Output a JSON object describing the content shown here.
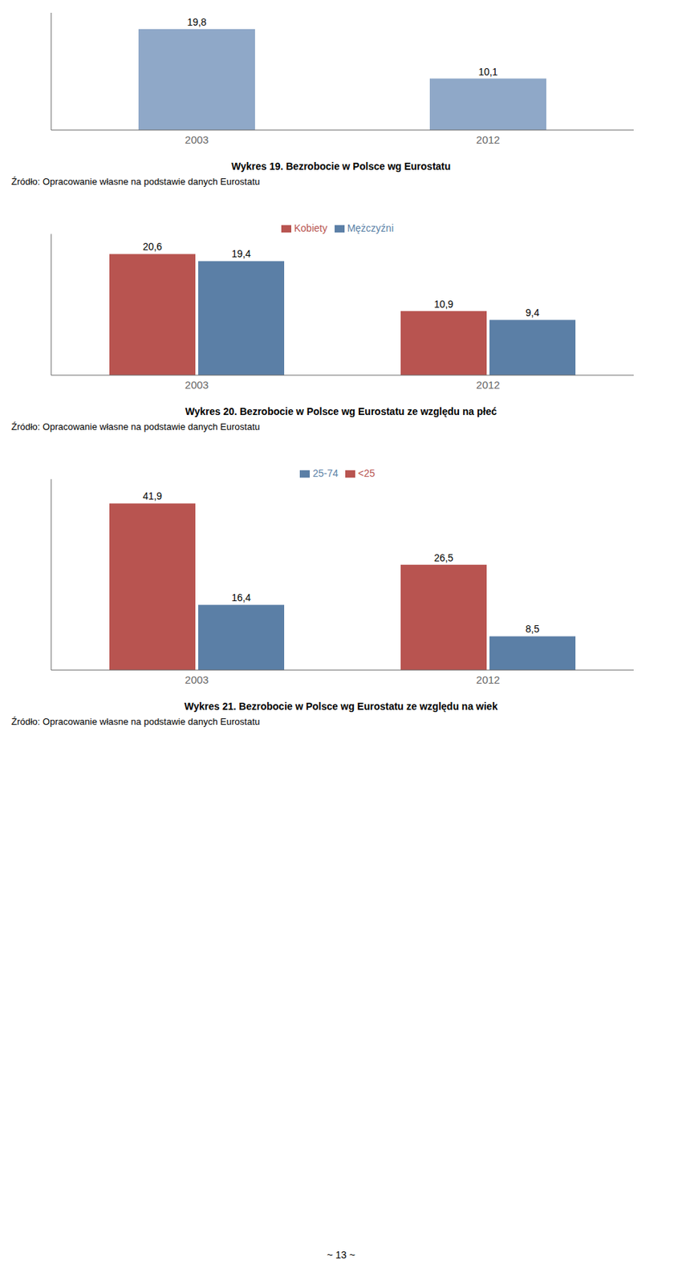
{
  "chart_data": [
    {
      "type": "bar",
      "title": "Wykres 19. Bezrobocie w Polsce wg Eurostatu",
      "annotations": [
        "Źródło: Opracowanie własne na podstawie danych Eurostatu"
      ],
      "categories": [
        "2003",
        "2012"
      ],
      "values": [
        19.8,
        10.1
      ],
      "value_labels": [
        "19,8",
        "10,1"
      ],
      "color": "#8FA8C8",
      "ylim": [
        0,
        23
      ],
      "data_labels": true,
      "tick_labels": "x",
      "grid": false
    },
    {
      "type": "bar",
      "title": "Wykres 20. Bezrobocie w Polsce wg Eurostatu ze względu na płeć",
      "annotations": [
        "Źródło: Opracowanie własne na podstawie danych Eurostatu"
      ],
      "categories": [
        "2003",
        "2012"
      ],
      "series": [
        {
          "name": "Kobiety",
          "color": "#B85450",
          "values": [
            20.6,
            10.9
          ],
          "value_labels": [
            "20,6",
            "10,9"
          ]
        },
        {
          "name": "Mężczyźni",
          "color": "#5B7FA6",
          "values": [
            19.4,
            9.4
          ],
          "value_labels": [
            "19,4",
            "9,4"
          ]
        }
      ],
      "ylim": [
        0,
        24
      ],
      "data_labels": true,
      "tick_labels": "x",
      "legend": "top",
      "grid": false
    },
    {
      "type": "bar",
      "title": "Wykres 21. Bezrobocie w Polsce wg Eurostatu ze względu na wiek",
      "annotations": [
        "Źródło: Opracowanie własne na podstawie danych Eurostatu"
      ],
      "categories": [
        "2003",
        "2012"
      ],
      "series": [
        {
          "name": "<25",
          "color": "#B85450",
          "values": [
            41.9,
            26.5
          ],
          "value_labels": [
            "41,9",
            "26,5"
          ]
        },
        {
          "name": "25-74",
          "color": "#5B7FA6",
          "values": [
            16.4,
            8.5
          ],
          "value_labels": [
            "16,4",
            "8,5"
          ]
        }
      ],
      "ylim": [
        0,
        48
      ],
      "data_labels": true,
      "tick_labels": "x",
      "legend": "top",
      "grid": false
    }
  ],
  "annotations": [
    "~ 13 ~"
  ]
}
